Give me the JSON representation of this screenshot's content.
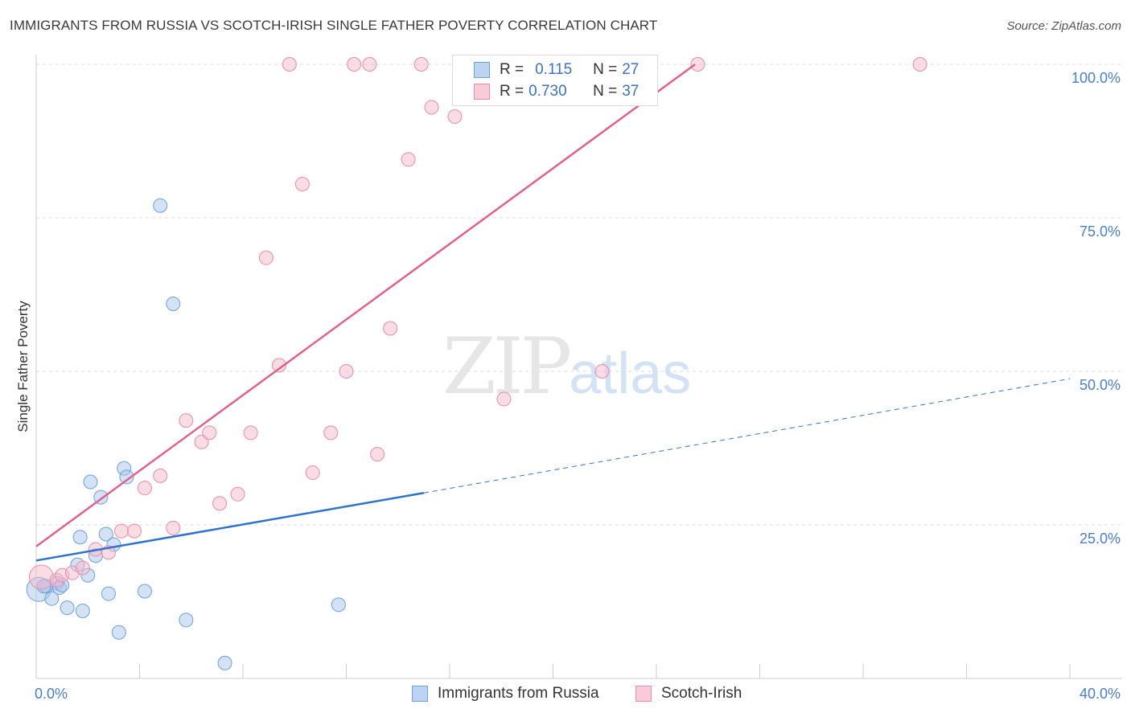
{
  "title": "IMMIGRANTS FROM RUSSIA VS SCOTCH-IRISH SINGLE FATHER POVERTY CORRELATION CHART",
  "source": "Source: ZipAtlas.com",
  "watermark": {
    "zip": "ZIP",
    "atlas": "atlas"
  },
  "legend": {
    "rows": [
      {
        "r_label": "R =",
        "r_value": "0.115",
        "n_label": "N =",
        "n_value": "27"
      },
      {
        "r_label": "R =",
        "r_value": "0.730",
        "n_label": "N =",
        "n_value": "37"
      }
    ]
  },
  "colors": {
    "blue_fill": "#a9c6ee",
    "blue_stroke": "#6f9fdc",
    "blue_line": "#2f72cc",
    "pink_fill": "#f6b9cb",
    "pink_stroke": "#e98daa",
    "pink_line": "#e0628d",
    "tick_text": "#4a7fc9",
    "grid": "#dddddd"
  },
  "chart_data": {
    "type": "scatter",
    "title": "IMMIGRANTS FROM RUSSIA VS SCOTCH-IRISH SINGLE FATHER POVERTY CORRELATION CHART",
    "xlabel": "",
    "ylabel": "Single Father Poverty",
    "xlim": [
      0,
      40
    ],
    "ylim": [
      0,
      100
    ],
    "x_tick_labels": [
      "0.0%",
      "40.0%"
    ],
    "y_ticks": [
      25,
      50,
      75,
      100
    ],
    "y_tick_labels": [
      "25.0%",
      "50.0%",
      "75.0%",
      "100.0%"
    ],
    "series": [
      {
        "name": "Immigrants from Russia",
        "color": "#a9c6ee",
        "points": [
          [
            0.1,
            14.5
          ],
          [
            0.4,
            15.0
          ],
          [
            0.6,
            13.0
          ],
          [
            0.8,
            15.5
          ],
          [
            0.9,
            14.8
          ],
          [
            1.2,
            11.5
          ],
          [
            1.6,
            18.5
          ],
          [
            1.7,
            23.0
          ],
          [
            1.8,
            11.0
          ],
          [
            2.0,
            16.8
          ],
          [
            2.1,
            32.0
          ],
          [
            2.3,
            20.0
          ],
          [
            2.5,
            29.5
          ],
          [
            2.7,
            23.5
          ],
          [
            2.8,
            13.8
          ],
          [
            3.0,
            21.8
          ],
          [
            3.2,
            7.5
          ],
          [
            3.4,
            34.2
          ],
          [
            3.5,
            32.8
          ],
          [
            4.2,
            14.2
          ],
          [
            4.8,
            77.0
          ],
          [
            5.3,
            61.0
          ],
          [
            5.8,
            9.5
          ],
          [
            7.3,
            2.5
          ],
          [
            11.7,
            12.0
          ],
          [
            0.3,
            15.0
          ],
          [
            1.0,
            15.2
          ]
        ]
      },
      {
        "name": "Scotch-Irish",
        "color": "#f6b9cb",
        "points": [
          [
            0.2,
            16.5
          ],
          [
            0.8,
            16.0
          ],
          [
            1.0,
            16.8
          ],
          [
            1.4,
            17.2
          ],
          [
            1.8,
            18.0
          ],
          [
            2.3,
            21.0
          ],
          [
            2.8,
            20.5
          ],
          [
            3.3,
            24.0
          ],
          [
            3.8,
            24.0
          ],
          [
            4.2,
            31.0
          ],
          [
            4.8,
            33.0
          ],
          [
            5.3,
            24.5
          ],
          [
            5.8,
            42.0
          ],
          [
            6.4,
            38.5
          ],
          [
            6.7,
            40.0
          ],
          [
            7.1,
            28.5
          ],
          [
            7.8,
            30.0
          ],
          [
            8.3,
            40.0
          ],
          [
            8.9,
            68.5
          ],
          [
            9.4,
            51.0
          ],
          [
            9.8,
            100.0
          ],
          [
            10.3,
            80.5
          ],
          [
            10.7,
            33.5
          ],
          [
            11.4,
            40.0
          ],
          [
            12.0,
            50.0
          ],
          [
            12.3,
            100.0
          ],
          [
            12.9,
            100.0
          ],
          [
            13.2,
            36.5
          ],
          [
            13.7,
            57.0
          ],
          [
            14.4,
            84.5
          ],
          [
            14.9,
            100.0
          ],
          [
            15.3,
            93.0
          ],
          [
            16.2,
            91.5
          ],
          [
            18.1,
            45.5
          ],
          [
            21.9,
            50.0
          ],
          [
            25.6,
            100.0
          ],
          [
            34.2,
            100.0
          ]
        ]
      }
    ],
    "trend_lines": [
      {
        "series": "Immigrants from Russia",
        "x0": 0,
        "y0": 19.2,
        "x1": 15.0,
        "y1": 30.2,
        "dashed_to_x": 40,
        "dashed_to_y": 48.8
      },
      {
        "series": "Scotch-Irish",
        "x0": 0,
        "y0": 21.5,
        "x1": 25.5,
        "y1": 100.0
      }
    ]
  }
}
